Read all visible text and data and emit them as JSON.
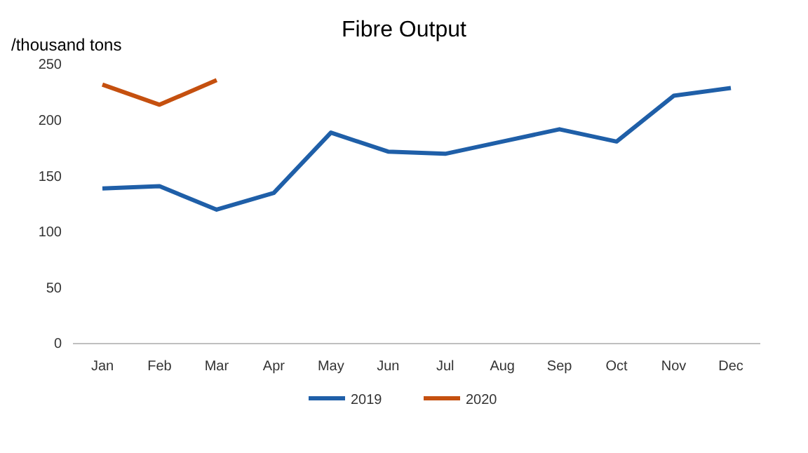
{
  "chart_data": {
    "type": "line",
    "title": "Fibre Output",
    "ylabel": "/thousand tons",
    "categories": [
      "Jan",
      "Feb",
      "Mar",
      "Apr",
      "May",
      "Jun",
      "Jul",
      "Aug",
      "Sep",
      "Oct",
      "Nov",
      "Dec"
    ],
    "series": [
      {
        "name": "2019",
        "color": "#1f5fa8",
        "values": [
          139,
          141,
          120,
          135,
          189,
          172,
          170,
          181,
          192,
          181,
          222,
          229
        ]
      },
      {
        "name": "2020",
        "color": "#c5500f",
        "values": [
          232,
          214,
          236,
          null,
          null,
          null,
          null,
          null,
          null,
          null,
          null,
          null
        ]
      }
    ],
    "ylim": [
      0,
      250
    ],
    "yticks": [
      0,
      50,
      100,
      150,
      200,
      250
    ],
    "grid": false,
    "legend": "bottom",
    "marker": "none",
    "line_style": "solid"
  }
}
